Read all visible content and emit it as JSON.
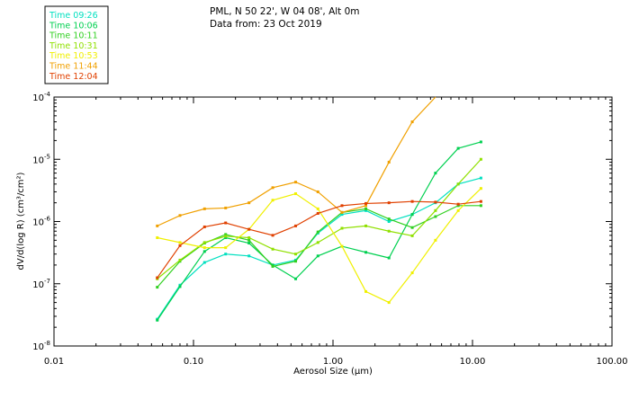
{
  "header": {
    "title": "PML, N 50 22', W 04 08', Alt 0m",
    "subtitle": "Data from: 23 Oct 2019"
  },
  "chart_data": {
    "type": "line",
    "title": "PML, N 50 22', W 04 08', Alt 0m",
    "subtitle": "Data from: 23 Oct 2019",
    "xlabel": "Aerosol Size (μm)",
    "ylabel": "dV/d(log R) (cm³/cm²)",
    "x_scale": "log",
    "y_scale": "log",
    "xlim": [
      0.01,
      100
    ],
    "ylim": [
      1e-08,
      0.0001
    ],
    "x_tick_values": [
      0.01,
      0.1,
      1,
      10,
      100
    ],
    "x_tick_labels": [
      "0.01",
      "0.10",
      "1.00",
      "10.00",
      "100.00"
    ],
    "y_tick_values": [
      1e-08,
      1e-07,
      1e-06,
      1e-05,
      0.0001
    ],
    "y_tick_labels": [
      {
        "base": "10",
        "exp": "-8"
      },
      {
        "base": "10",
        "exp": "-7"
      },
      {
        "base": "10",
        "exp": "-6"
      },
      {
        "base": "10",
        "exp": "-5"
      },
      {
        "base": "10",
        "exp": "-4"
      }
    ],
    "grid": false,
    "legend_position": "top-left",
    "x": [
      0.055,
      0.08,
      0.12,
      0.17,
      0.25,
      0.37,
      0.54,
      0.78,
      1.16,
      1.72,
      2.52,
      3.7,
      5.43,
      7.9,
      11.5
    ],
    "series": [
      {
        "name": "Time 09:26",
        "color": "#00e0c0",
        "values": [
          2.7e-08,
          9.5e-08,
          2.2e-07,
          3e-07,
          2.8e-07,
          2e-07,
          2.4e-07,
          6.5e-07,
          1.3e-06,
          1.5e-06,
          1e-06,
          1.3e-06,
          2e-06,
          4e-06,
          5e-06
        ]
      },
      {
        "name": "Time 10:06",
        "color": "#00d050",
        "values": [
          2.6e-08,
          9e-08,
          3.3e-07,
          5.5e-07,
          4.5e-07,
          2e-07,
          1.2e-07,
          2.8e-07,
          4e-07,
          3.2e-07,
          2.6e-07,
          1.3e-06,
          6e-06,
          1.5e-05,
          1.9e-05
        ]
      },
      {
        "name": "Time 10:11",
        "color": "#30d020",
        "values": [
          8.8e-08,
          2.3e-07,
          4.5e-07,
          6.2e-07,
          5e-07,
          1.9e-07,
          2.3e-07,
          6.8e-07,
          1.4e-06,
          1.6e-06,
          1.1e-06,
          8e-07,
          1.2e-06,
          1.8e-06,
          1.8e-06
        ]
      },
      {
        "name": "Time 10:31",
        "color": "#90e000",
        "values": [
          1.2e-07,
          2.4e-07,
          4.6e-07,
          5.8e-07,
          5.5e-07,
          3.6e-07,
          3e-07,
          4.6e-07,
          7.8e-07,
          8.5e-07,
          7e-07,
          5.9e-07,
          1.5e-06,
          4e-06,
          1e-05
        ]
      },
      {
        "name": "Time 10:53",
        "color": "#f0f000",
        "values": [
          5.5e-07,
          4.6e-07,
          3.8e-07,
          3.8e-07,
          7.5e-07,
          2.2e-06,
          2.8e-06,
          1.6e-06,
          4e-07,
          7.5e-08,
          5e-08,
          1.5e-07,
          5e-07,
          1.5e-06,
          3.4e-06
        ]
      },
      {
        "name": "Time 11:44",
        "color": "#f0a000",
        "values": [
          8.5e-07,
          1.25e-06,
          1.6e-06,
          1.65e-06,
          2e-06,
          3.5e-06,
          4.3e-06,
          3e-06,
          1.4e-06,
          1.8e-06,
          9e-06,
          4e-05,
          0.0001,
          null,
          null
        ]
      },
      {
        "name": "Time 12:04",
        "color": "#e04000",
        "values": [
          1.25e-07,
          4.1e-07,
          8.2e-07,
          9.5e-07,
          7.5e-07,
          6e-07,
          8.5e-07,
          1.35e-06,
          1.8e-06,
          1.95e-06,
          2e-06,
          2.1e-06,
          2.05e-06,
          1.9e-06,
          2.1e-06
        ]
      }
    ]
  }
}
